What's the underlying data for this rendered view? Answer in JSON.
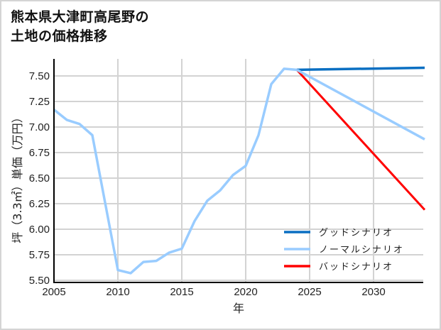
{
  "title_line1": "熊本県大津町高尾野の",
  "title_line2": "土地の価格推移",
  "chart_data": {
    "type": "line",
    "title": "熊本県大津町高尾野の土地の価格推移",
    "xlabel": "年",
    "ylabel": "坪（3.3㎡）単価（万円）",
    "xlim": [
      2005,
      2034
    ],
    "ylim": [
      5.5,
      7.65
    ],
    "x_ticks": [
      "2005",
      "2010",
      "2015",
      "2020",
      "2025",
      "2030"
    ],
    "y_ticks": [
      "5.50",
      "5.75",
      "6.00",
      "6.25",
      "6.50",
      "6.75",
      "7.00",
      "7.25",
      "7.50"
    ],
    "grid": true,
    "legend_position": "lower right",
    "historical": {
      "x": [
        2005,
        2006,
        2007,
        2008,
        2009,
        2010,
        2011,
        2012,
        2013,
        2014,
        2015,
        2016,
        2017,
        2018,
        2019,
        2020,
        2021,
        2022,
        2023,
        2024
      ],
      "values": [
        7.17,
        7.07,
        7.03,
        6.92,
        6.26,
        5.6,
        5.57,
        5.68,
        5.69,
        5.77,
        5.81,
        6.08,
        6.28,
        6.38,
        6.53,
        6.62,
        6.92,
        7.42,
        7.57,
        7.56
      ]
    },
    "series": [
      {
        "name": "グッドシナリオ",
        "color": "#0a6fc2",
        "x": [
          2024,
          2034
        ],
        "values": [
          7.56,
          7.58
        ]
      },
      {
        "name": "ノーマルシナリオ",
        "color": "#99ccff",
        "x": [
          2024,
          2034
        ],
        "values": [
          7.56,
          6.88
        ]
      },
      {
        "name": "バッドシナリオ",
        "color": "#ff0000",
        "x": [
          2024,
          2034
        ],
        "values": [
          7.56,
          6.19
        ]
      }
    ]
  },
  "legend": [
    {
      "label": "グッドシナリオ",
      "color": "#0a6fc2"
    },
    {
      "label": "ノーマルシナリオ",
      "color": "#99ccff"
    },
    {
      "label": "バッドシナリオ",
      "color": "#ff0000"
    }
  ]
}
